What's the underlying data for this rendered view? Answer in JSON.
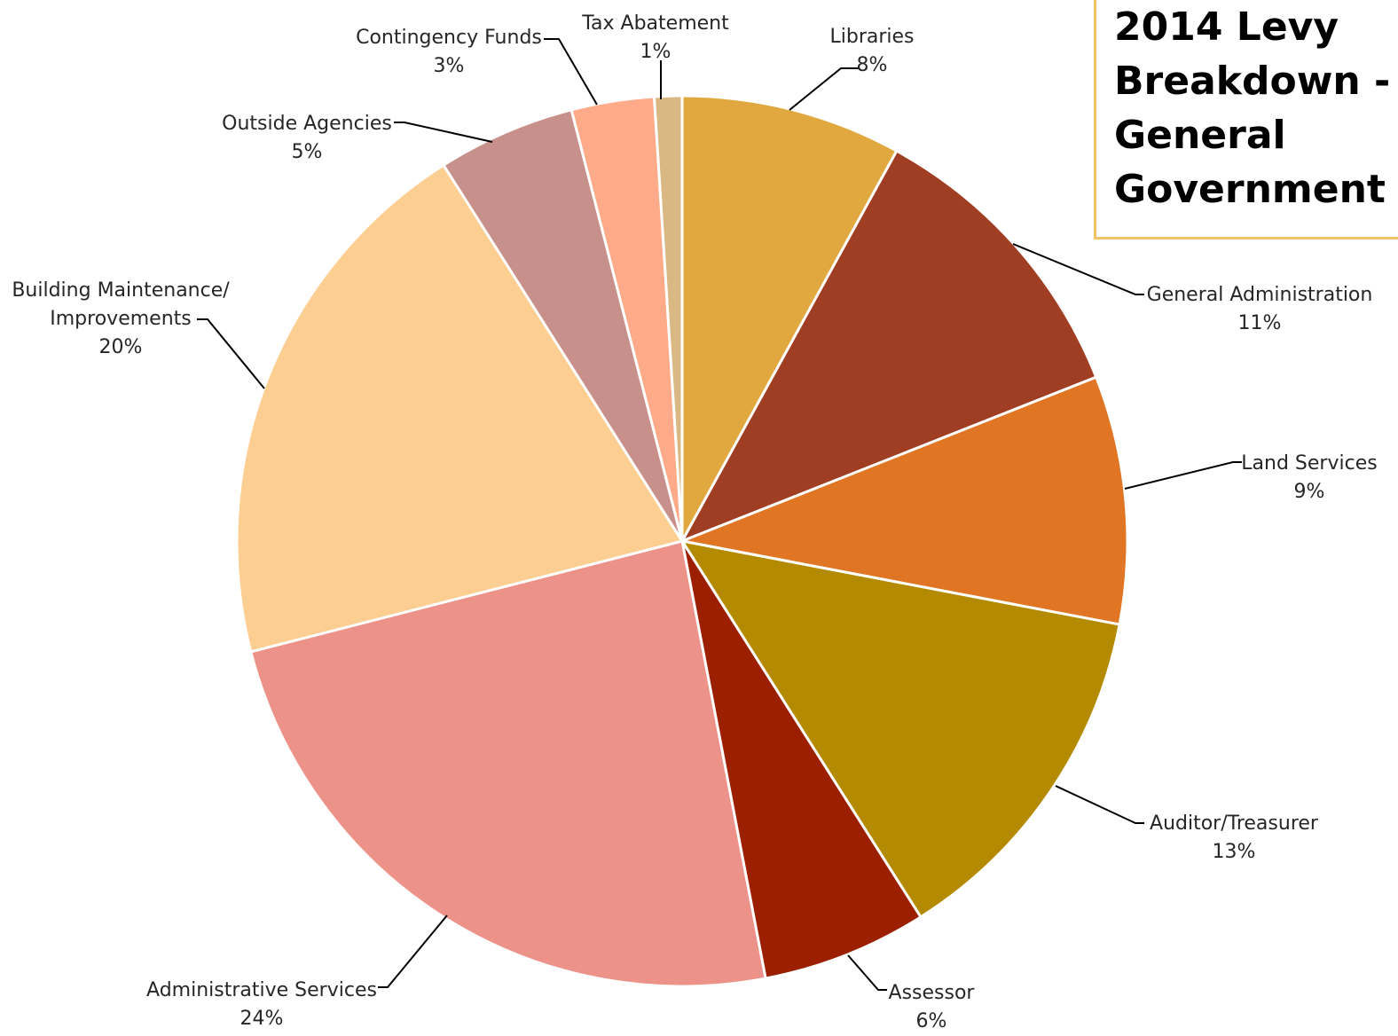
{
  "chart_data": {
    "type": "pie",
    "title": "2014 Levy Breakdown - General Government",
    "start_angle_deg": 0,
    "direction": "clockwise",
    "slices": [
      {
        "label": [
          "Libraries"
        ],
        "value": 8,
        "value_label": "8%",
        "color": "#E0A83F"
      },
      {
        "label": [
          "General Administration"
        ],
        "value": 11,
        "value_label": "11%",
        "color": "#A03E23"
      },
      {
        "label": [
          "Land Services"
        ],
        "value": 9,
        "value_label": "9%",
        "color": "#E07624"
      },
      {
        "label": [
          "Auditor/Treasurer"
        ],
        "value": 13,
        "value_label": "13%",
        "color": "#B38A00"
      },
      {
        "label": [
          "Assessor"
        ],
        "value": 6,
        "value_label": "6%",
        "color": "#9C2000"
      },
      {
        "label": [
          "Administrative Services"
        ],
        "value": 24,
        "value_label": "24%",
        "color": "#ED9288"
      },
      {
        "label": [
          "Building Maintenance/",
          "Improvements"
        ],
        "value": 20,
        "value_label": "20%",
        "color": "#FDCE91"
      },
      {
        "label": [
          "Outside Agencies"
        ],
        "value": 5,
        "value_label": "5%",
        "color": "#C8908A"
      },
      {
        "label": [
          "Contingency Funds"
        ],
        "value": 3,
        "value_label": "3%",
        "color": "#FFAA88"
      },
      {
        "label": [
          "Tax Abatement"
        ],
        "value": 1,
        "value_label": "1%",
        "color": "#D9B884"
      }
    ]
  }
}
